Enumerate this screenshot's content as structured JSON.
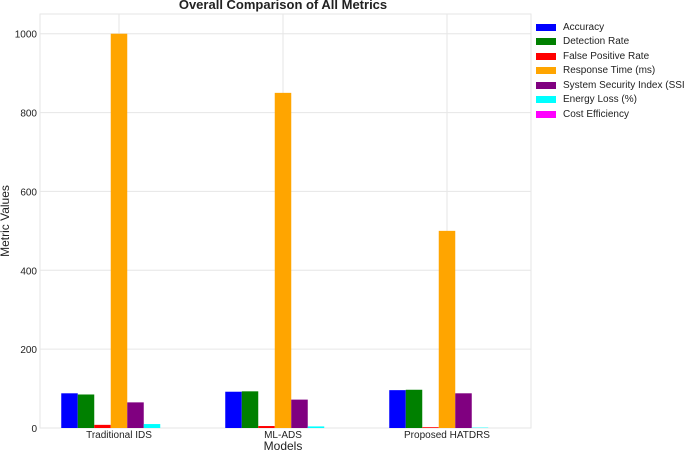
{
  "chart_data": {
    "type": "bar",
    "title": "Overall Comparison of All Metrics",
    "xlabel": "Models",
    "ylabel": "Metric Values",
    "categories": [
      "Traditional IDS",
      "ML-ADS",
      "Proposed HATDRS"
    ],
    "ylim": [
      0,
      1050
    ],
    "yticks": [
      0,
      200,
      400,
      600,
      800,
      1000
    ],
    "grid": true,
    "legend_position": "upper-right, outside plot",
    "series": [
      {
        "name": "Accuracy",
        "color": "#0000ff",
        "values": [
          88,
          92,
          96
        ]
      },
      {
        "name": "Detection Rate",
        "color": "#008000",
        "values": [
          85,
          93,
          97
        ]
      },
      {
        "name": "False Positive Rate",
        "color": "#ff0000",
        "values": [
          8,
          5,
          2
        ]
      },
      {
        "name": "Response Time (ms)",
        "color": "#ffa500",
        "values": [
          1000,
          850,
          500
        ]
      },
      {
        "name": "System Security Index (SSI)",
        "color": "#800080",
        "values": [
          65,
          72,
          88
        ]
      },
      {
        "name": "Energy Loss (%)",
        "color": "#00ffff",
        "values": [
          10,
          4,
          1
        ]
      },
      {
        "name": "Cost Efficiency",
        "color": "#ff00ff",
        "values": [
          0,
          0,
          0
        ]
      }
    ]
  }
}
